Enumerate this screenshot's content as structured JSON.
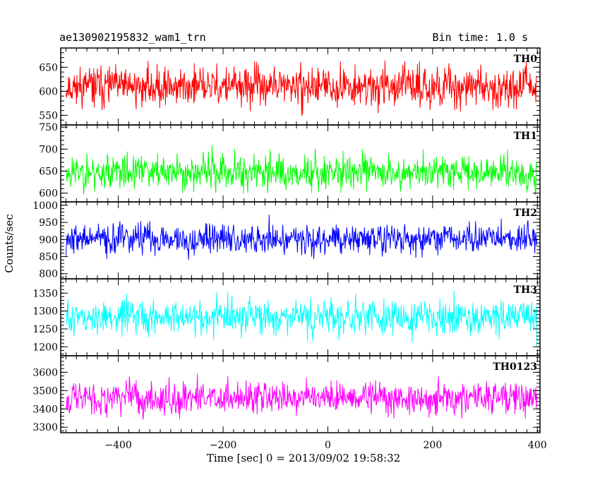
{
  "chart_data": {
    "type": "line",
    "title": "ae130902195832_wam1_trn",
    "subtitle": "Bin time: 1.0 s",
    "xlabel": "Time [sec] 0 = 2013/09/02 19:58:32",
    "ylabel": "Counts/sec",
    "xlim": [
      -510,
      405
    ],
    "x_ticks": [
      "-400",
      "-200",
      "0",
      "200",
      "400"
    ],
    "bin_time_s": 1.0,
    "x_start": -500,
    "x_end": 399,
    "grid": false,
    "panels": [
      {
        "name": "TH0",
        "color": "#ff0000",
        "ylim": [
          530,
          690
        ],
        "yticks": [
          "550",
          "600",
          "650"
        ],
        "mean": 610,
        "amplitude": 38,
        "seed": 11
      },
      {
        "name": "TH1",
        "color": "#00ff00",
        "ylim": [
          580,
          755
        ],
        "yticks": [
          "600",
          "650",
          "700",
          "750"
        ],
        "mean": 648,
        "amplitude": 38,
        "seed": 23
      },
      {
        "name": "TH2",
        "color": "#0000ff",
        "ylim": [
          785,
          1010
        ],
        "yticks": [
          "800",
          "850",
          "900",
          "950",
          "1000"
        ],
        "mean": 902,
        "amplitude": 42,
        "seed": 37
      },
      {
        "name": "TH3",
        "color": "#00ffff",
        "ylim": [
          1175,
          1390
        ],
        "yticks": [
          "1200",
          "1250",
          "1300",
          "1350"
        ],
        "mean": 1282,
        "amplitude": 45,
        "seed": 51
      },
      {
        "name": "TH0123",
        "color": "#ff00ff",
        "ylim": [
          3270,
          3690
        ],
        "yticks": [
          "3300",
          "3400",
          "3500",
          "3600"
        ],
        "mean": 3462,
        "amplitude": 85,
        "seed": 67
      }
    ]
  }
}
